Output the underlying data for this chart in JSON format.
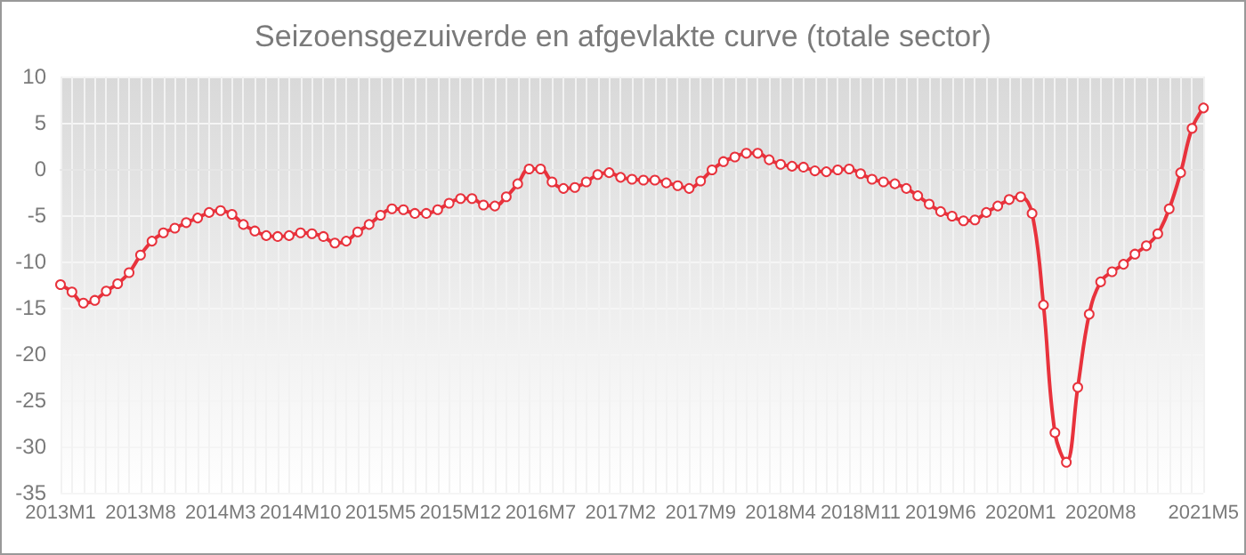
{
  "chart_data": {
    "type": "line",
    "title": "Seizoensgezuiverde en afgevlakte curve (totale sector)",
    "categories": [
      "2013M1",
      null,
      null,
      null,
      null,
      null,
      null,
      "2013M8",
      null,
      null,
      null,
      null,
      null,
      null,
      "2014M3",
      null,
      null,
      null,
      null,
      null,
      null,
      "2014M10",
      null,
      null,
      null,
      null,
      null,
      null,
      "2015M5",
      null,
      null,
      null,
      null,
      null,
      null,
      "2015M12",
      null,
      null,
      null,
      null,
      null,
      null,
      "2016M7",
      null,
      null,
      null,
      null,
      null,
      null,
      "2017M2",
      null,
      null,
      null,
      null,
      null,
      null,
      "2017M9",
      null,
      null,
      null,
      null,
      null,
      null,
      "2018M4",
      null,
      null,
      null,
      null,
      null,
      null,
      "2018M11",
      null,
      null,
      null,
      null,
      null,
      null,
      "2019M6",
      null,
      null,
      null,
      null,
      null,
      null,
      "2020M1",
      null,
      null,
      null,
      null,
      null,
      null,
      "2020M8",
      null,
      null,
      null,
      null,
      null,
      null,
      null,
      null,
      "2021M5"
    ],
    "series": [
      {
        "color": "#e8323c",
        "values": [
          -12.5,
          -13.3,
          -14.5,
          -14.2,
          -13.2,
          -12.4,
          -11.2,
          -9.3,
          -7.8,
          -6.9,
          -6.4,
          -5.8,
          -5.3,
          -4.7,
          -4.5,
          -4.9,
          -6.0,
          -6.7,
          -7.2,
          -7.3,
          -7.2,
          -6.9,
          -7.0,
          -7.3,
          -8.0,
          -7.8,
          -6.8,
          -6.0,
          -5.0,
          -4.3,
          -4.4,
          -4.8,
          -4.8,
          -4.4,
          -3.7,
          -3.2,
          -3.2,
          -3.9,
          -4.0,
          -3.0,
          -1.6,
          0,
          0,
          -1.4,
          -2.1,
          -2.0,
          -1.4,
          -0.6,
          -0.4,
          -0.9,
          -1.1,
          -1.2,
          -1.2,
          -1.5,
          -1.8,
          -2.1,
          -1.3,
          -0.1,
          0.8,
          1.3,
          1.7,
          1.7,
          1.0,
          0.5,
          0.3,
          0.2,
          -0.2,
          -0.3,
          -0.1,
          0,
          -0.5,
          -1.1,
          -1.4,
          -1.6,
          -2.1,
          -2.9,
          -3.8,
          -4.6,
          -5.1,
          -5.6,
          -5.5,
          -4.7,
          -4.0,
          -3.3,
          -3.0,
          -4.8,
          -14.7,
          -28.5,
          -31.7,
          -23.6,
          -15.7,
          -12.2,
          -11.1,
          -10.3,
          -9.2,
          -8.3,
          -7.0,
          -4.3,
          -0.4,
          4.4,
          6.6
        ]
      }
    ],
    "ylim": [
      -35,
      10
    ],
    "yticks": [
      -35,
      -30,
      -25,
      -20,
      -15,
      -10,
      -5,
      0,
      5,
      10
    ],
    "grid": true,
    "marker": "circle",
    "line_style": "solid"
  }
}
